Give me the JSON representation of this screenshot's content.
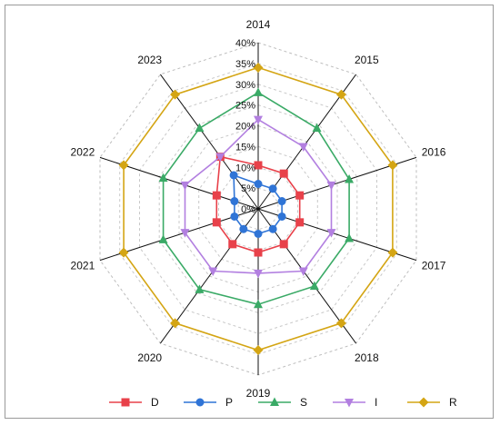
{
  "chart_data": {
    "type": "radar",
    "categories": [
      "2014",
      "2015",
      "2016",
      "2017",
      "2018",
      "2019",
      "2020",
      "2021",
      "2022",
      "2023"
    ],
    "rlim": [
      0,
      40
    ],
    "rticks": [
      "0%",
      "5%",
      "10%",
      "15%",
      "20%",
      "25%",
      "30%",
      "35%",
      "40%"
    ],
    "rtick_values": [
      0,
      5,
      10,
      15,
      20,
      25,
      30,
      35,
      40
    ],
    "grid": true,
    "legend_position": "bottom",
    "series": [
      {
        "name": "D",
        "color": "#e8414a",
        "marker": "square",
        "values": [
          10.5,
          10.5,
          10.5,
          10.5,
          10.5,
          10.5,
          10.5,
          10.5,
          10.5,
          15.5
        ]
      },
      {
        "name": "P",
        "color": "#2f74d6",
        "marker": "circle",
        "values": [
          6,
          6,
          6,
          6,
          6,
          6,
          6,
          6,
          6,
          10
        ]
      },
      {
        "name": "S",
        "color": "#3aaa66",
        "marker": "triangle-up",
        "values": [
          28,
          24,
          23,
          23,
          23,
          23,
          24,
          24,
          24,
          24
        ]
      },
      {
        "name": "I",
        "color": "#b27fe0",
        "marker": "triangle-down",
        "values": [
          21.5,
          18.5,
          18.5,
          18.5,
          18.5,
          15.5,
          18.5,
          18.5,
          18.5,
          15.5
        ]
      },
      {
        "name": "R",
        "color": "#d4a514",
        "marker": "diamond",
        "values": [
          34,
          34,
          34,
          34,
          34,
          34,
          34,
          34,
          34,
          34
        ]
      }
    ]
  }
}
